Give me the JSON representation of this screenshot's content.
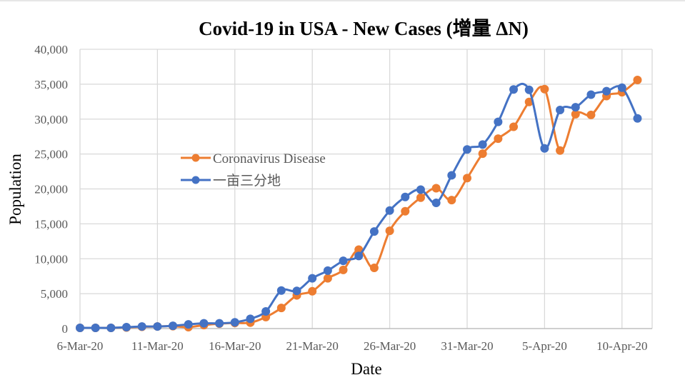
{
  "chart_data": {
    "type": "line",
    "title": "Covid-19 in USA - New Cases (增量 ΔN)",
    "xlabel": "Date",
    "ylabel": "Population",
    "ylim": [
      0,
      40000
    ],
    "yticks": [
      0,
      5000,
      10000,
      15000,
      20000,
      25000,
      30000,
      35000,
      40000
    ],
    "ytick_labels": [
      "0",
      "5,000",
      "10,000",
      "15,000",
      "20,000",
      "25,000",
      "30,000",
      "35,000",
      "40,000"
    ],
    "xtick_labels": [
      "6-Mar-20",
      "11-Mar-20",
      "16-Mar-20",
      "21-Mar-20",
      "26-Mar-20",
      "31-Mar-20",
      "5-Apr-20",
      "10-Apr-20"
    ],
    "xtick_day_index": [
      0,
      5,
      10,
      15,
      20,
      25,
      30,
      35
    ],
    "x": [
      "6-Mar-20",
      "7-Mar-20",
      "8-Mar-20",
      "9-Mar-20",
      "10-Mar-20",
      "11-Mar-20",
      "12-Mar-20",
      "13-Mar-20",
      "14-Mar-20",
      "15-Mar-20",
      "16-Mar-20",
      "17-Mar-20",
      "18-Mar-20",
      "19-Mar-20",
      "20-Mar-20",
      "21-Mar-20",
      "22-Mar-20",
      "23-Mar-20",
      "24-Mar-20",
      "25-Mar-20",
      "26-Mar-20",
      "27-Mar-20",
      "28-Mar-20",
      "29-Mar-20",
      "30-Mar-20",
      "31-Mar-20",
      "1-Apr-20",
      "2-Apr-20",
      "3-Apr-20",
      "4-Apr-20",
      "5-Apr-20",
      "6-Apr-20",
      "7-Apr-20",
      "8-Apr-20",
      "9-Apr-20",
      "10-Apr-20",
      "11-Apr-20"
    ],
    "grid": true,
    "legend_position": "center-left",
    "series": [
      {
        "name": "Coronavirus Disease",
        "color": "#ED7D31",
        "smooth": true,
        "values": [
          100,
          100,
          100,
          150,
          250,
          300,
          350,
          200,
          500,
          700,
          800,
          850,
          1650,
          2950,
          4750,
          5350,
          7200,
          8400,
          11300,
          8700,
          14000,
          16800,
          18750,
          20100,
          18400,
          21550,
          25050,
          27200,
          28900,
          32450,
          34300,
          25500,
          30700,
          30600,
          33300,
          33850,
          35600
        ]
      },
      {
        "name": "一亩三分地",
        "color": "#4472C4",
        "smooth": true,
        "values": [
          100,
          100,
          100,
          200,
          300,
          300,
          400,
          600,
          750,
          750,
          900,
          1400,
          2450,
          5450,
          5400,
          7200,
          8300,
          9700,
          10400,
          13900,
          16900,
          18850,
          19900,
          18000,
          21950,
          25650,
          26350,
          29600,
          34250,
          34200,
          25800,
          31300,
          31700,
          33500,
          34000,
          34500,
          30100
        ]
      }
    ]
  },
  "colors": {
    "grid": "#D9D9D9",
    "tick_text": "#595959",
    "background": "#FFFFFF"
  }
}
